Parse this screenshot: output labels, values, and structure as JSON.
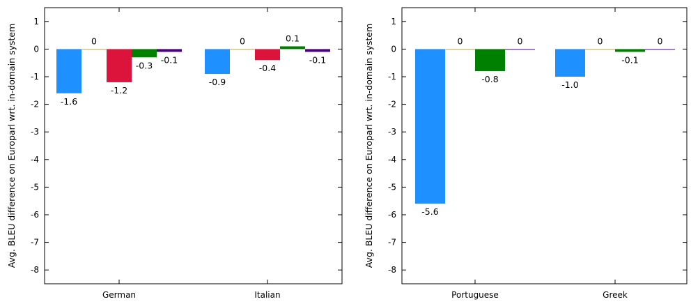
{
  "chart_data": [
    {
      "type": "bar",
      "ylabel": "Avg. BLEU difference on Europarl wrt. in-domain system",
      "ylim": [
        -8.5,
        1.5
      ],
      "yticks": [
        "1",
        "0",
        "-1",
        "-2",
        "-3",
        "-4",
        "-5",
        "-6",
        "-7",
        "-8"
      ],
      "categories": [
        "German",
        "Italian"
      ],
      "series_colors": [
        "#1e90ff",
        "#c8a050",
        "#dc143c",
        "#008000",
        "#4b0082"
      ],
      "groups": [
        {
          "category": "German",
          "bars": [
            {
              "value": -1.6,
              "label": "-1.6"
            },
            {
              "value": 0,
              "label": "0"
            },
            {
              "value": -1.2,
              "label": "-1.2"
            },
            {
              "value": -0.3,
              "label": "-0.3"
            },
            {
              "value": -0.1,
              "label": "-0.1"
            }
          ]
        },
        {
          "category": "Italian",
          "bars": [
            {
              "value": -0.9,
              "label": "-0.9"
            },
            {
              "value": 0,
              "label": "0"
            },
            {
              "value": -0.4,
              "label": "-0.4"
            },
            {
              "value": 0.1,
              "label": "0.1"
            },
            {
              "value": -0.1,
              "label": "-0.1"
            }
          ]
        }
      ]
    },
    {
      "type": "bar",
      "ylabel": "Avg. BLEU difference on Europarl wrt. in-domain system",
      "ylim": [
        -8.5,
        1.5
      ],
      "yticks": [
        "1",
        "0",
        "-1",
        "-2",
        "-3",
        "-4",
        "-5",
        "-6",
        "-7",
        "-8"
      ],
      "categories": [
        "Portuguese",
        "Greek"
      ],
      "series_colors": [
        "#1e90ff",
        "#c8a050",
        "#008000",
        "#4b0082"
      ],
      "groups": [
        {
          "category": "Portuguese",
          "bars": [
            {
              "value": -5.6,
              "label": "-5.6"
            },
            {
              "value": 0,
              "label": "0"
            },
            {
              "value": -0.8,
              "label": "-0.8"
            },
            {
              "value": 0,
              "label": "0"
            }
          ]
        },
        {
          "category": "Greek",
          "bars": [
            {
              "value": -1.0,
              "label": "-1.0"
            },
            {
              "value": 0,
              "label": "0"
            },
            {
              "value": -0.1,
              "label": "-0.1"
            },
            {
              "value": 0,
              "label": "0"
            }
          ]
        }
      ]
    }
  ]
}
